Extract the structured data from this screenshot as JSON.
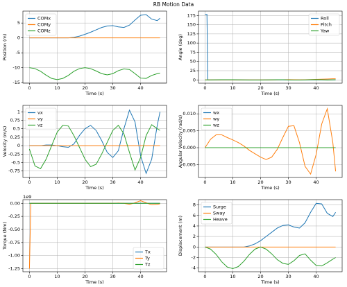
{
  "title": "RB Motion Data",
  "chart_data": [
    {
      "type": "line",
      "ylabel": "Position (m)",
      "xlabel": "Time (s)",
      "legend": "upper left",
      "grid": true,
      "x": [
        0,
        2,
        4,
        6,
        8,
        10,
        12,
        14,
        16,
        18,
        20,
        22,
        24,
        26,
        28,
        30,
        32,
        34,
        36,
        38,
        40,
        42,
        44,
        46,
        47
      ],
      "xlim": [
        -2.35,
        49.35
      ],
      "xticks": [
        0,
        10,
        20,
        30,
        40
      ],
      "ylim": [
        -15.2,
        9
      ],
      "yticks": [
        -15,
        -10,
        -5,
        0,
        5
      ],
      "series": [
        {
          "name": "COMx",
          "color": "#1f77b4",
          "values": [
            0,
            0,
            0,
            0,
            0,
            0,
            0,
            0,
            0.2,
            0.6,
            1.2,
            1.9,
            2.7,
            3.5,
            4.0,
            4.1,
            3.7,
            3.5,
            4.3,
            6.0,
            7.6,
            7.8,
            6.3,
            5.8,
            6.6
          ]
        },
        {
          "name": "COMy",
          "color": "#ff7f0e",
          "values": [
            0,
            0,
            0,
            0,
            0,
            0,
            0,
            0,
            0,
            0,
            0,
            0,
            0,
            0,
            0,
            0,
            0,
            0,
            0,
            0,
            0,
            0,
            0,
            0,
            0
          ]
        },
        {
          "name": "COMz",
          "color": "#2ca02c",
          "values": [
            -10,
            -10.3,
            -11.2,
            -12.5,
            -13.6,
            -14,
            -13.6,
            -12.6,
            -11.2,
            -10.3,
            -10,
            -10.3,
            -11.1,
            -12,
            -12.4,
            -12,
            -11,
            -10.4,
            -10.6,
            -12,
            -13.5,
            -13.6,
            -12.6,
            -12,
            -11.8
          ]
        }
      ]
    },
    {
      "type": "line",
      "ylabel": "Angle (deg)",
      "xlabel": "Time (s)",
      "legend": "upper right",
      "grid": true,
      "x": [
        0,
        0.7,
        1,
        2,
        4,
        6,
        8,
        10,
        12,
        14,
        16,
        18,
        20,
        22,
        24,
        26,
        28,
        30,
        32,
        34,
        36,
        38,
        40,
        42,
        44,
        46,
        47
      ],
      "xlim": [
        -2.35,
        49.35
      ],
      "xticks": [
        0,
        10,
        20,
        30,
        40
      ],
      "ylim": [
        -8.9,
        186.9
      ],
      "yticks": [
        0,
        25,
        50,
        75,
        100,
        125,
        150,
        175
      ],
      "series": [
        {
          "name": "Roll",
          "color": "#1f77b4",
          "values": [
            178,
            178,
            0,
            0,
            0,
            0,
            0,
            0,
            0,
            0,
            0,
            0,
            0,
            0,
            0,
            0,
            0,
            0,
            0,
            0,
            0,
            0,
            0,
            0,
            0,
            0,
            0
          ]
        },
        {
          "name": "Pitch",
          "color": "#ff7f0e",
          "values": [
            0,
            0,
            0,
            0,
            0,
            0,
            0,
            0,
            0,
            0,
            0,
            0,
            0,
            0,
            0,
            0.2,
            0.5,
            0.8,
            0.6,
            0.3,
            0.5,
            1,
            1.5,
            2,
            2.5,
            3,
            3
          ]
        },
        {
          "name": "Yaw",
          "color": "#2ca02c",
          "values": [
            0,
            0,
            0,
            0,
            0.3,
            0.5,
            0.6,
            0.4,
            0.2,
            0,
            -0.2,
            -0.3,
            -0.2,
            0,
            0.3,
            0.5,
            0.4,
            0.1,
            -0.2,
            -0.3,
            0,
            0.5,
            0.8,
            0.4,
            -0.2,
            0.3,
            0.5
          ]
        }
      ]
    },
    {
      "type": "line",
      "ylabel": "Velocity (m/s)",
      "xlabel": "Time (s)",
      "legend": "upper left",
      "grid": true,
      "x": [
        0,
        2,
        4,
        6,
        8,
        10,
        12,
        14,
        16,
        18,
        20,
        22,
        24,
        26,
        28,
        30,
        32,
        34,
        36,
        38,
        40,
        42,
        44,
        46,
        47
      ],
      "xlim": [
        -2.35,
        49.35
      ],
      "xticks": [
        0,
        10,
        20,
        30,
        40
      ],
      "ylim": [
        -0.94,
        1.19
      ],
      "yticks": [
        -0.75,
        -0.5,
        -0.25,
        0,
        0.25,
        0.5,
        0.75,
        1
      ],
      "series": [
        {
          "name": "vx",
          "color": "#1f77b4",
          "values": [
            0,
            0,
            0,
            0.02,
            0.02,
            0,
            -0.03,
            -0.05,
            0.05,
            0.3,
            0.5,
            0.6,
            0.45,
            0.15,
            -0.2,
            -0.35,
            -0.15,
            0.5,
            1.05,
            0.7,
            -0.3,
            -0.82,
            -0.4,
            0.6,
            1.0
          ]
        },
        {
          "name": "vy",
          "color": "#ff7f0e",
          "values": [
            0,
            0,
            0,
            0,
            0,
            0,
            0,
            0,
            0,
            0,
            0,
            0,
            0,
            0,
            0,
            0,
            0,
            0,
            0,
            0,
            0,
            0,
            0,
            0,
            0
          ]
        },
        {
          "name": "vz",
          "color": "#2ca02c",
          "values": [
            -0.1,
            -0.6,
            -0.68,
            -0.4,
            0,
            0.4,
            0.6,
            0.58,
            0.3,
            -0.05,
            -0.4,
            -0.62,
            -0.55,
            -0.25,
            0.1,
            0.45,
            0.6,
            0.35,
            -0.2,
            -0.72,
            -0.35,
            0.3,
            0.62,
            0.5,
            0.45
          ]
        }
      ]
    },
    {
      "type": "line",
      "ylabel": "Angular Velocity (rad/s)",
      "xlabel": "Time (s)",
      "legend": "upper left",
      "grid": true,
      "x": [
        0,
        2,
        4,
        6,
        8,
        10,
        12,
        14,
        16,
        18,
        20,
        22,
        24,
        26,
        28,
        30,
        32,
        34,
        36,
        38,
        40,
        42,
        44,
        46,
        47
      ],
      "xlim": [
        -2.35,
        49.35
      ],
      "xticks": [
        0,
        10,
        20,
        30,
        40
      ],
      "ylim": [
        -0.0088,
        0.0125
      ],
      "yticks": [
        -0.005,
        {
          "value": 0,
          "label": "0.000"
        },
        0.005,
        {
          "value": 0.01,
          "label": "0.010"
        }
      ],
      "series": [
        {
          "name": "wx",
          "color": "#1f77b4",
          "values": [
            0,
            0,
            0,
            0,
            0,
            0,
            0,
            0,
            0,
            0,
            0,
            0,
            0,
            0,
            0,
            0,
            0,
            0,
            0,
            0,
            0,
            0,
            0,
            0,
            0
          ]
        },
        {
          "name": "wy",
          "color": "#ff7f0e",
          "values": [
            0,
            0.0025,
            0.0038,
            0.0038,
            0.003,
            0.0023,
            0.0015,
            0.0005,
            -0.0008,
            -0.0018,
            -0.0028,
            -0.0035,
            -0.0028,
            -0.0005,
            0.003,
            0.0063,
            0.0065,
            0.0015,
            -0.0055,
            -0.0078,
            -0.002,
            0.007,
            0.0115,
            0.0015,
            -0.007
          ]
        },
        {
          "name": "wz",
          "color": "#2ca02c",
          "values": [
            0,
            0,
            0,
            0,
            0,
            0,
            0,
            0,
            0,
            0,
            0,
            0,
            0,
            0,
            0,
            0,
            0,
            0,
            0,
            0,
            0,
            0,
            0,
            0,
            0
          ]
        }
      ]
    },
    {
      "type": "line",
      "ylabel": "Torque (Nm)",
      "xlabel": "Time (s)",
      "legend": "lower right",
      "grid": true,
      "offset_text": "1e9",
      "x": [
        0,
        0.5,
        2,
        4,
        6,
        8,
        10,
        12,
        14,
        16,
        18,
        20,
        22,
        24,
        26,
        28,
        30,
        32,
        34,
        36,
        38,
        40,
        42,
        44,
        46,
        47
      ],
      "xlim": [
        -2.35,
        49.35
      ],
      "xticks": [
        0,
        10,
        20,
        30,
        40
      ],
      "ylim": [
        -1310000000,
        70000000
      ],
      "yticks": [
        {
          "value": -1250000000,
          "label": "-1.25"
        },
        {
          "value": -1000000000,
          "label": "-1.00"
        },
        {
          "value": -750000000,
          "label": "-0.75"
        },
        {
          "value": -500000000,
          "label": "-0.50"
        },
        {
          "value": -250000000,
          "label": "-0.25"
        },
        {
          "value": 0,
          "label": "0.00"
        }
      ],
      "series": [
        {
          "name": "Tx",
          "color": "#1f77b4",
          "values": [
            0,
            0,
            0,
            0,
            0,
            0,
            0,
            0,
            0,
            0,
            0,
            0,
            0,
            0,
            0,
            0,
            0,
            0,
            0,
            0,
            0,
            0,
            0,
            0,
            0,
            0
          ]
        },
        {
          "name": "Ty",
          "color": "#ff7f0e",
          "values": [
            -1250000000,
            0,
            0,
            0,
            0,
            0,
            0,
            0,
            0,
            0,
            0,
            0,
            0,
            0,
            0,
            0,
            0,
            5000000,
            0,
            -20000000,
            10000000,
            50000000,
            10000000,
            -30000000,
            -20000000,
            -10000000
          ]
        },
        {
          "name": "Tz",
          "color": "#2ca02c",
          "values": [
            0,
            0,
            0,
            0,
            0,
            0,
            0,
            0,
            0,
            0,
            0,
            0,
            0,
            0,
            0,
            0,
            0,
            0,
            0,
            0,
            0,
            0,
            0,
            0,
            0,
            0
          ]
        }
      ]
    },
    {
      "type": "line",
      "ylabel": "Displacement (m)",
      "xlabel": "Time (s)",
      "legend": "upper left",
      "grid": true,
      "x": [
        0,
        2,
        4,
        6,
        8,
        10,
        12,
        14,
        16,
        18,
        20,
        22,
        24,
        26,
        28,
        30,
        32,
        34,
        36,
        38,
        40,
        42,
        44,
        46,
        47
      ],
      "xlim": [
        -2.35,
        49.35
      ],
      "xticks": [
        0,
        10,
        20,
        30,
        40
      ],
      "ylim": [
        -4.7,
        9.0
      ],
      "yticks": [
        -4,
        -2,
        0,
        2,
        4,
        6,
        8
      ],
      "series": [
        {
          "name": "Surge",
          "color": "#1f77b4",
          "values": [
            0,
            0,
            0,
            0,
            0,
            0,
            0,
            0,
            0.2,
            0.6,
            1.2,
            2.0,
            2.8,
            3.6,
            4.1,
            4.2,
            3.8,
            3.6,
            4.6,
            6.6,
            8.3,
            8.2,
            6.4,
            5.8,
            6.6
          ]
        },
        {
          "name": "Sway",
          "color": "#ff7f0e",
          "values": [
            0,
            0,
            0,
            0,
            0,
            0,
            0,
            0,
            0,
            0,
            0,
            0,
            0,
            0,
            0,
            0,
            0,
            0,
            0,
            0,
            0,
            0,
            0,
            0,
            0
          ]
        },
        {
          "name": "Heave",
          "color": "#2ca02c",
          "values": [
            0,
            -0.4,
            -1.4,
            -2.8,
            -3.8,
            -4.1,
            -3.7,
            -2.7,
            -1.4,
            -0.4,
            0,
            -0.4,
            -1.3,
            -2.4,
            -3.1,
            -3.3,
            -2.6,
            -1.6,
            -1.3,
            -2.5,
            -3.5,
            -3.6,
            -3.0,
            -2.3,
            -2.0
          ]
        }
      ]
    }
  ]
}
